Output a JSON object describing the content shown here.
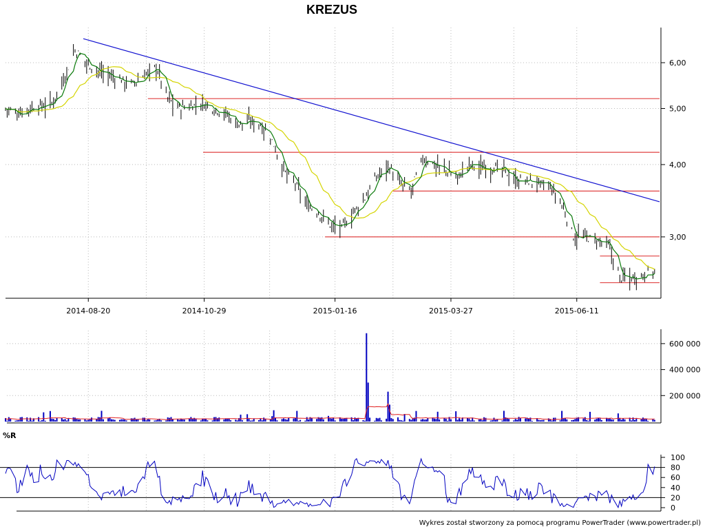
{
  "title": "KREZUS",
  "footer_text": "Wykres został stworzony za pomocą programu PowerTrader (www.powertrader.pl)",
  "colors": {
    "bars": "#000000",
    "sma_short": "#0a7a0a",
    "sma_long": "#d4d400",
    "trendline": "#1010d0",
    "levels": "#e04040",
    "volume": "#0000c0",
    "volume_avg": "#e02020",
    "williams_r": "#0000c0"
  },
  "chart_data": [
    {
      "type": "line",
      "panel": "price",
      "y_scale": "log",
      "ylim": [
        2.35,
        6.9
      ],
      "x_range": [
        "2014-07-01",
        "2015-07-31"
      ],
      "y_ticks": [
        6,
        5,
        4,
        3
      ],
      "y_tick_labels": [
        "6,00",
        "5,00",
        "4,00",
        "3,00"
      ],
      "x_ticks": [
        "2014-08-20",
        "2014-10-29",
        "2015-01-16",
        "2015-03-27",
        "2015-06-11"
      ],
      "series_closes": {
        "dates": [
          "2014-07-01",
          "2014-07-08",
          "2014-07-15",
          "2014-07-22",
          "2014-07-29",
          "2014-08-05",
          "2014-08-12",
          "2014-08-19",
          "2014-08-26",
          "2014-09-02",
          "2014-09-09",
          "2014-09-16",
          "2014-09-23",
          "2014-09-30",
          "2014-10-07",
          "2014-10-14",
          "2014-10-21",
          "2014-10-28",
          "2014-11-04",
          "2014-11-11",
          "2014-11-18",
          "2014-11-25",
          "2014-12-02",
          "2014-12-09",
          "2014-12-16",
          "2014-12-23",
          "2014-12-30",
          "2015-01-06",
          "2015-01-13",
          "2015-01-20",
          "2015-01-27",
          "2015-02-03",
          "2015-02-10",
          "2015-02-17",
          "2015-02-24",
          "2015-03-03",
          "2015-03-10",
          "2015-03-17",
          "2015-03-24",
          "2015-03-31",
          "2015-04-07",
          "2015-04-14",
          "2015-04-21",
          "2015-04-28",
          "2015-05-05",
          "2015-05-12",
          "2015-05-19",
          "2015-05-26",
          "2015-06-02",
          "2015-06-09",
          "2015-06-16",
          "2015-06-23",
          "2015-06-30",
          "2015-07-07",
          "2015-07-14",
          "2015-07-21",
          "2015-07-28"
        ],
        "close": [
          5.0,
          4.9,
          5.0,
          5.05,
          5.1,
          5.6,
          6.3,
          6.0,
          5.8,
          5.7,
          5.6,
          5.5,
          5.7,
          5.9,
          5.2,
          5.0,
          5.05,
          5.1,
          5.0,
          4.9,
          4.7,
          4.75,
          4.7,
          4.4,
          3.9,
          3.7,
          3.4,
          3.3,
          3.15,
          3.1,
          3.3,
          3.5,
          3.8,
          4.0,
          3.7,
          3.6,
          4.1,
          4.0,
          3.9,
          3.8,
          4.0,
          3.95,
          3.95,
          3.9,
          3.75,
          3.75,
          3.7,
          3.65,
          3.4,
          3.0,
          3.0,
          2.95,
          2.9,
          2.55,
          2.55,
          2.58,
          2.62
        ]
      },
      "sma_short_label": "",
      "sma_long_label": "",
      "trendline": {
        "from": [
          "2014-08-17",
          6.6
        ],
        "to": [
          "2015-07-31",
          3.45
        ]
      },
      "horizontal_levels": [
        {
          "y": 5.2,
          "from": "2014-09-25",
          "to": "2015-07-31"
        },
        {
          "y": 4.2,
          "from": "2014-10-38",
          "to": "2015-07-31"
        },
        {
          "y": 3.6,
          "from": "2015-02-20",
          "to": "2015-07-31"
        },
        {
          "y": 3.0,
          "from": "2015-01-10",
          "to": "2015-07-31"
        },
        {
          "y": 2.78,
          "from": "2015-06-25",
          "to": "2015-07-31"
        },
        {
          "y": 2.5,
          "from": "2015-06-25",
          "to": "2015-07-31"
        }
      ]
    },
    {
      "type": "bar",
      "panel": "volume",
      "ylim": [
        0,
        700000
      ],
      "y_ticks": [
        600000,
        400000,
        200000
      ],
      "y_tick_labels": [
        "600 000",
        "400 000",
        "200 000"
      ],
      "spikes": [
        {
          "date": "2015-02-04",
          "value": 680000
        },
        {
          "date": "2015-02-05",
          "value": 300000
        },
        {
          "date": "2015-02-17",
          "value": 230000
        },
        {
          "date": "2015-02-18",
          "value": 130000
        }
      ],
      "typical_value": 25000
    },
    {
      "type": "line",
      "panel": "williams_r",
      "label": "%R",
      "ylim": [
        0,
        100
      ],
      "y_ticks": [
        100,
        80,
        60,
        40,
        20,
        0
      ],
      "y_tick_labels": [
        "100",
        "80",
        "60",
        "40",
        "20",
        "0"
      ],
      "reference_lines": [
        80,
        20
      ]
    }
  ]
}
